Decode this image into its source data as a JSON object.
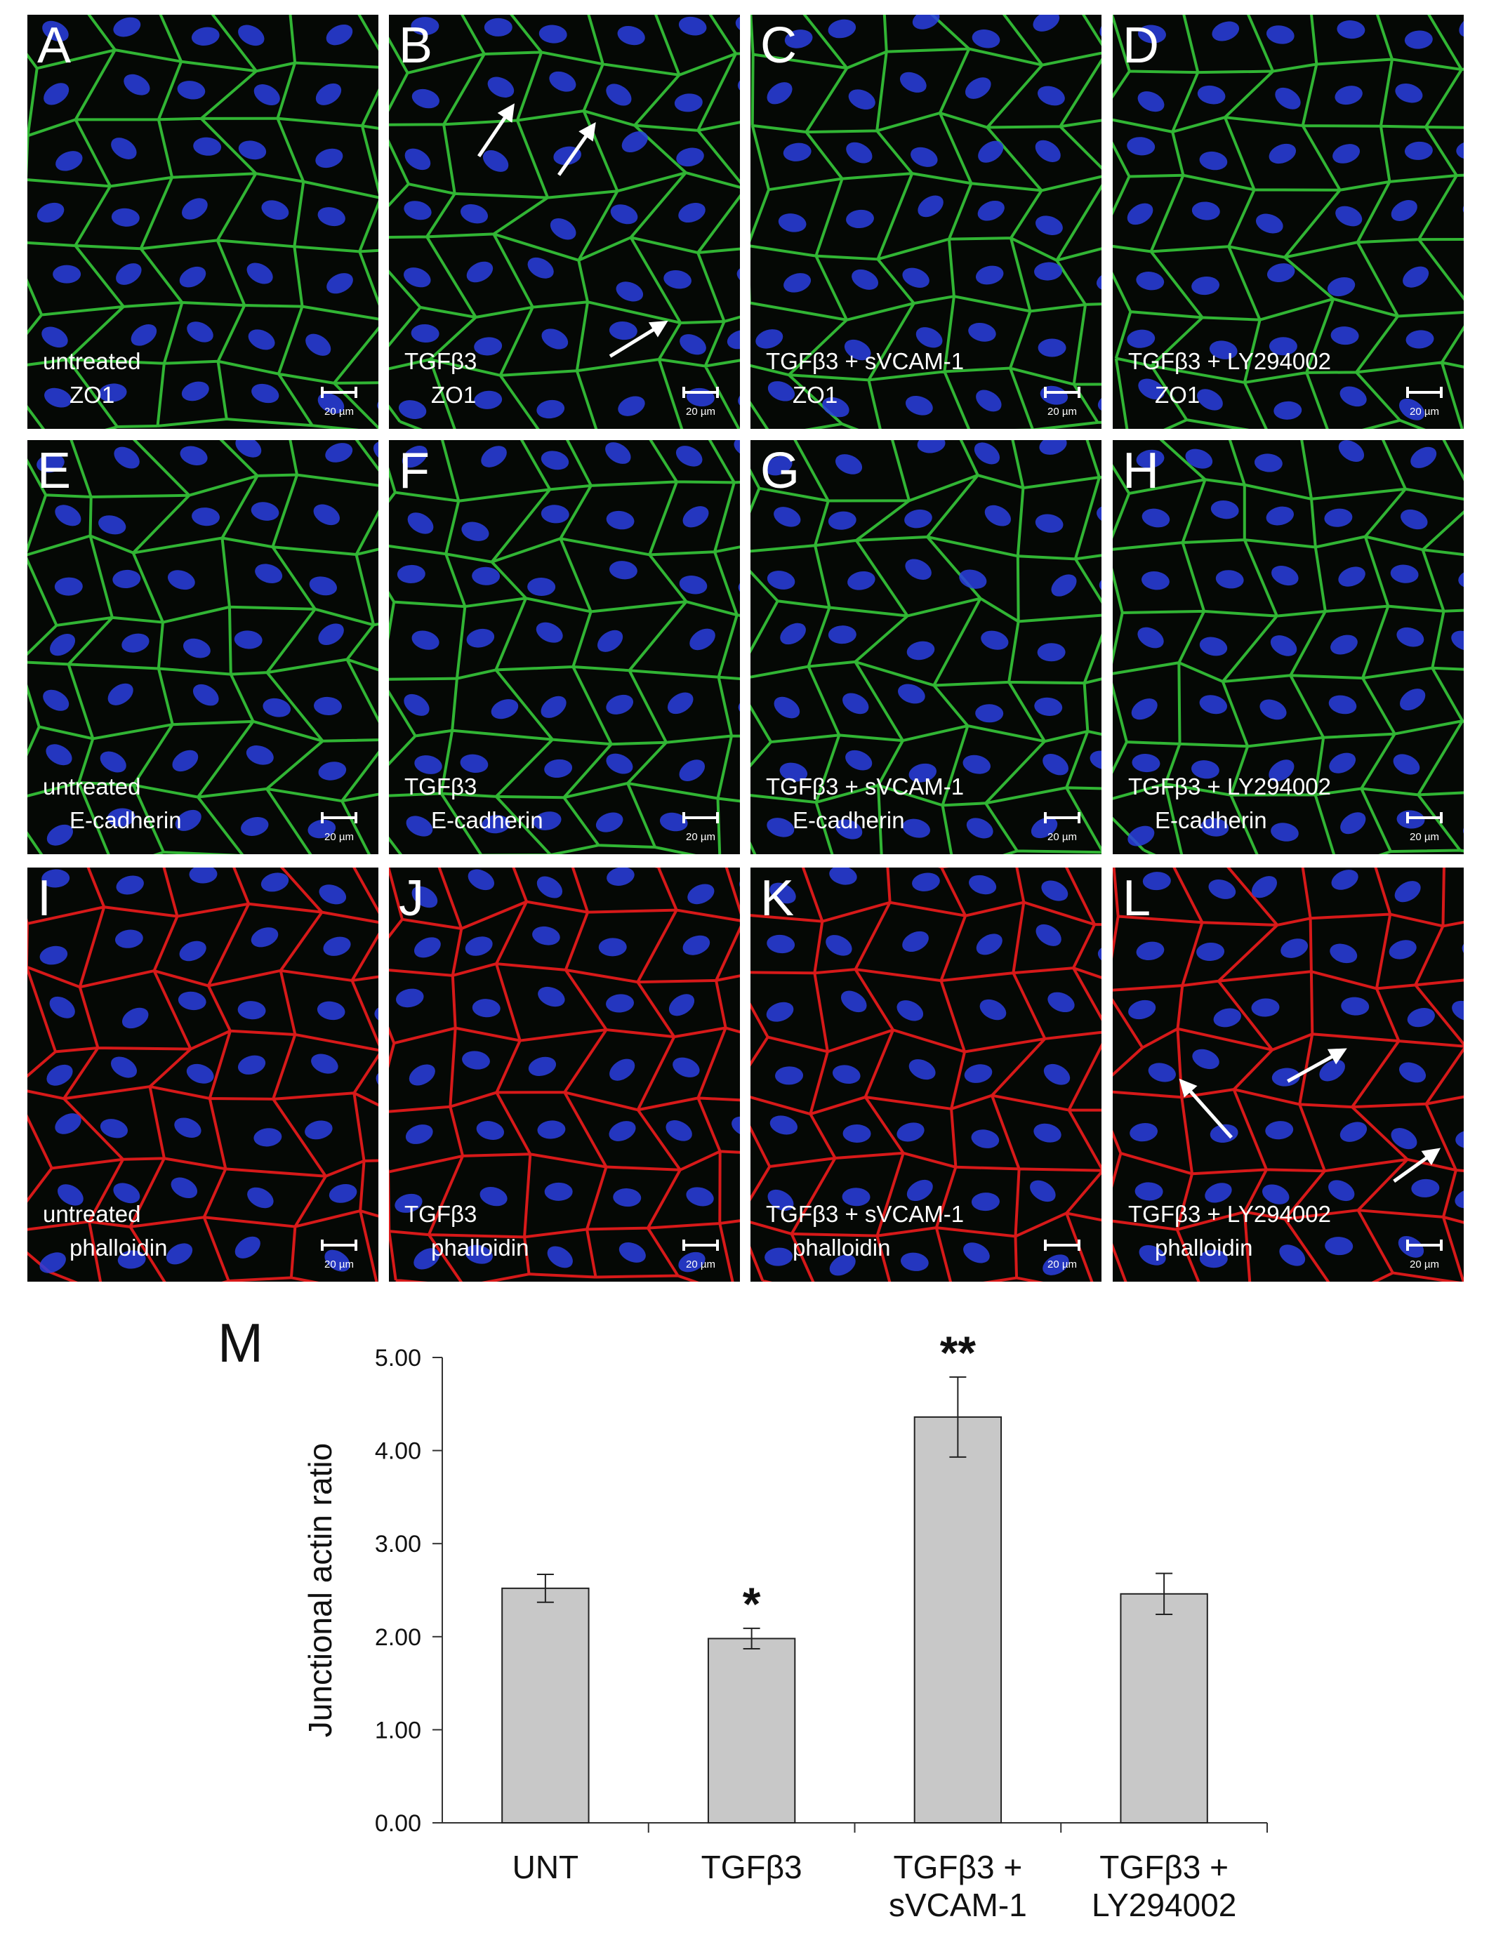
{
  "panels": [
    {
      "letter": "A",
      "treatment": "untreated",
      "stain": "ZO1",
      "scale_bar": "20 µm",
      "color": "#36c93a"
    },
    {
      "letter": "B",
      "treatment": "TGFβ3",
      "stain": "ZO1",
      "scale_bar": "20 µm",
      "color": "#36c93a"
    },
    {
      "letter": "C",
      "treatment": "TGFβ3 + sVCAM-1",
      "stain": "ZO1",
      "scale_bar": "20 µm",
      "color": "#36c93a"
    },
    {
      "letter": "D",
      "treatment": "TGFβ3 + LY294002",
      "stain": "ZO1",
      "scale_bar": "20 µm",
      "color": "#36c93a"
    },
    {
      "letter": "E",
      "treatment": "untreated",
      "stain": "E-cadherin",
      "scale_bar": "20 µm",
      "color": "#36c93a"
    },
    {
      "letter": "F",
      "treatment": "TGFβ3",
      "stain": "E-cadherin",
      "scale_bar": "20 µm",
      "color": "#36c93a"
    },
    {
      "letter": "G",
      "treatment": "TGFβ3 + sVCAM-1",
      "stain": "E-cadherin",
      "scale_bar": "20 µm",
      "color": "#36c93a"
    },
    {
      "letter": "H",
      "treatment": "TGFβ3 + LY294002",
      "stain": "E-cadherin",
      "scale_bar": "20 µm",
      "color": "#36c93a"
    },
    {
      "letter": "I",
      "treatment": "untreated",
      "stain": "phalloidin",
      "scale_bar": "20 µm",
      "color": "#ee1c1c"
    },
    {
      "letter": "J",
      "treatment": "TGFβ3",
      "stain": "phalloidin",
      "scale_bar": "20 µm",
      "color": "#ee1c1c"
    },
    {
      "letter": "K",
      "treatment": "TGFβ3 + sVCAM-1",
      "stain": "phalloidin",
      "scale_bar": "20 µm",
      "color": "#ee1c1c"
    },
    {
      "letter": "L",
      "treatment": "TGFβ3 + LY294002",
      "stain": "phalloidin",
      "scale_bar": "20 µm",
      "color": "#ee1c1c"
    }
  ],
  "chart_data": {
    "type": "bar",
    "panel_label": "M",
    "y_label": "Junctional actin ratio",
    "categories": [
      "UNT",
      "TGFβ3",
      "TGFβ3 + sVCAM-1",
      "TGFβ3 + LY294002"
    ],
    "values": [
      2.52,
      1.98,
      4.36,
      2.46
    ],
    "errors": [
      0.15,
      0.11,
      0.43,
      0.22
    ],
    "significance": [
      null,
      "*",
      "**",
      null
    ],
    "color": "#c8c8c8",
    "ylim": [
      0,
      5
    ],
    "yticks": [
      {
        "value": 0,
        "label": "0.00"
      },
      {
        "value": 1,
        "label": "1.00"
      },
      {
        "value": 2,
        "label": "2.00"
      },
      {
        "value": 3,
        "label": "3.00"
      },
      {
        "value": 4,
        "label": "4.00"
      },
      {
        "value": 5,
        "label": "5.00"
      }
    ]
  }
}
